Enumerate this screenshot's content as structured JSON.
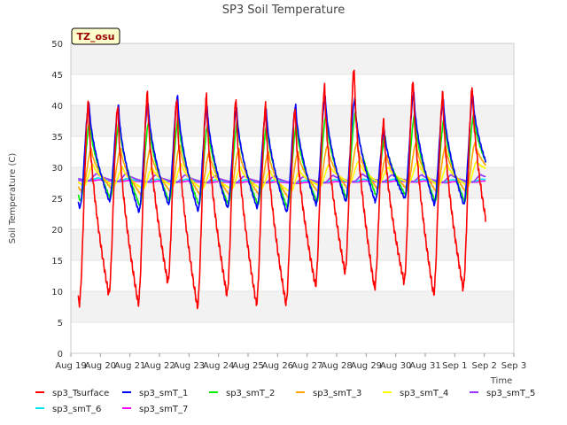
{
  "chart_data": {
    "type": "line",
    "title": "SP3 Soil Temperature",
    "xlabel": "Time",
    "ylabel": "Soil Temperature (C)",
    "ylim": [
      0,
      50
    ],
    "yticks": [
      0,
      5,
      10,
      15,
      20,
      25,
      30,
      35,
      40,
      45,
      50
    ],
    "xlim": [
      "2022-08-19",
      "2022-09-03"
    ],
    "xticks": [
      "Aug 19",
      "Aug 20",
      "Aug 21",
      "Aug 22",
      "Aug 23",
      "Aug 24",
      "Aug 25",
      "Aug 26",
      "Aug 27",
      "Aug 28",
      "Aug 29",
      "Aug 30",
      "Aug 31",
      "Sep 1",
      "Sep 2",
      "Sep 3"
    ],
    "grid": "horizontal alternating bands",
    "legend_position": "bottom",
    "annotation": "TZ_osu",
    "days": [
      "Aug 19",
      "Aug 20",
      "Aug 21",
      "Aug 22",
      "Aug 23",
      "Aug 24",
      "Aug 25",
      "Aug 26",
      "Aug 27",
      "Aug 28",
      "Aug 29",
      "Aug 30",
      "Aug 31",
      "Sep 1",
      "Sep 2"
    ],
    "x_start_day": 19.25,
    "x_end_day": 33.05,
    "series": [
      {
        "name": "sp3_Tsurface",
        "color": "#ff0000",
        "daily_max": [
          40.5,
          40.0,
          42.0,
          41.0,
          41.5,
          41.0,
          40.0,
          39.5,
          43.0,
          46.0,
          37.5,
          44.0,
          42.0,
          43.0
        ],
        "daily_min": [
          8.0,
          9.5,
          8.0,
          11.5,
          7.5,
          9.5,
          8.0,
          8.0,
          11.0,
          13.0,
          10.5,
          11.5,
          9.5,
          10.5,
          15.5
        ]
      },
      {
        "name": "sp3_smT_1",
        "color": "#0000ff",
        "daily_max": [
          40.5,
          40.0,
          40.5,
          41.5,
          40.0,
          39.5,
          39.5,
          40.0,
          41.5,
          41.0,
          36.0,
          42.0,
          41.0,
          41.5
        ],
        "daily_min": [
          23.5,
          24.5,
          22.8,
          24.0,
          23.0,
          23.5,
          23.5,
          22.8,
          24.0,
          24.5,
          24.5,
          25.0,
          24.0,
          24.0,
          27.5
        ]
      },
      {
        "name": "sp3_smT_2",
        "color": "#00ee00",
        "daily_max": [
          37.5,
          37.5,
          37.5,
          38.0,
          37.0,
          37.5,
          37.0,
          37.0,
          38.5,
          39.0,
          35.0,
          38.5,
          38.0,
          38.5
        ],
        "daily_min": [
          24.5,
          25.0,
          23.8,
          24.5,
          24.0,
          24.0,
          24.0,
          23.5,
          24.5,
          25.0,
          25.5,
          25.5,
          24.5,
          24.5,
          28.0
        ]
      },
      {
        "name": "sp3_smT_3",
        "color": "#ffa500",
        "daily_max": [
          33.0,
          33.0,
          33.0,
          33.5,
          32.5,
          33.0,
          32.5,
          32.5,
          33.5,
          34.0,
          32.0,
          34.0,
          33.5,
          34.0
        ],
        "daily_min": [
          26.0,
          26.5,
          25.5,
          26.0,
          25.5,
          25.5,
          25.5,
          25.0,
          26.0,
          26.5,
          26.5,
          26.5,
          26.0,
          26.0,
          28.5
        ]
      },
      {
        "name": "sp3_smT_4",
        "color": "#ffff00",
        "daily_max": [
          30.5,
          30.0,
          30.0,
          30.5,
          29.5,
          30.0,
          29.5,
          29.5,
          30.5,
          31.0,
          30.0,
          31.0,
          30.5,
          31.0
        ],
        "daily_min": [
          27.0,
          27.0,
          26.5,
          27.0,
          26.5,
          26.5,
          26.5,
          26.0,
          27.0,
          27.5,
          27.5,
          27.5,
          27.0,
          27.0,
          29.0
        ]
      },
      {
        "name": "sp3_smT_5",
        "color": "#9933ff",
        "daily_max": [
          29.0,
          29.0,
          28.8,
          28.8,
          28.6,
          28.6,
          28.6,
          28.5,
          28.7,
          28.9,
          28.8,
          28.8,
          28.8,
          28.8
        ],
        "daily_min": [
          27.8,
          27.7,
          27.6,
          27.6,
          27.5,
          27.5,
          27.5,
          27.4,
          27.5,
          27.7,
          27.7,
          27.7,
          27.6,
          27.6,
          28.0
        ]
      },
      {
        "name": "sp3_smT_6",
        "color": "#00e5ee",
        "daily_max": [
          28.3,
          28.2,
          28.1,
          28.1,
          28.0,
          28.0,
          28.0,
          27.9,
          28.0,
          28.1,
          28.1,
          28.1,
          28.0,
          28.1
        ],
        "daily_min": [
          27.9,
          27.8,
          27.7,
          27.7,
          27.6,
          27.6,
          27.6,
          27.5,
          27.6,
          27.7,
          27.7,
          27.7,
          27.6,
          27.7,
          27.8
        ]
      },
      {
        "name": "sp3_smT_7",
        "color": "#ff00ff",
        "daily_max": [
          28.0,
          27.9,
          27.8,
          27.8,
          27.7,
          27.7,
          27.7,
          27.6,
          27.7,
          27.8,
          27.8,
          27.8,
          27.7,
          27.8
        ],
        "daily_min": [
          27.8,
          27.7,
          27.6,
          27.6,
          27.5,
          27.5,
          27.5,
          27.4,
          27.5,
          27.6,
          27.6,
          27.6,
          27.5,
          27.6,
          27.6
        ]
      }
    ]
  }
}
